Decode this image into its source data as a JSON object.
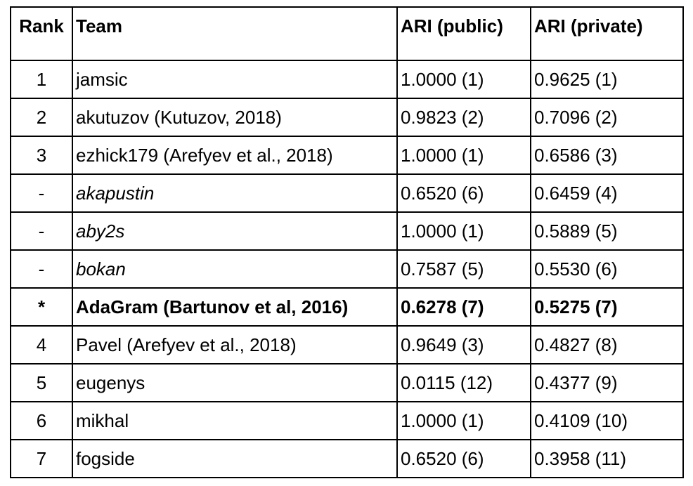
{
  "table": {
    "headers": {
      "rank": "Rank",
      "team": "Team",
      "ari_public": "ARI (public)",
      "ari_private": "ARI (private)"
    },
    "rows": [
      {
        "rank": "1",
        "team": "jamsic",
        "ari_public": "1.0000 (1)",
        "ari_private": "0.9625 (1)",
        "style": "normal"
      },
      {
        "rank": "2",
        "team": "akutuzov (Kutuzov, 2018)",
        "ari_public": "0.9823 (2)",
        "ari_private": "0.7096 (2)",
        "style": "normal"
      },
      {
        "rank": "3",
        "team": "ezhick179 (Arefyev et al., 2018)",
        "ari_public": "1.0000 (1)",
        "ari_private": "0.6586 (3)",
        "style": "normal"
      },
      {
        "rank": "-",
        "team": "akapustin",
        "ari_public": "0.6520 (6)",
        "ari_private": "0.6459 (4)",
        "style": "italic"
      },
      {
        "rank": "-",
        "team": "aby2s",
        "ari_public": "1.0000 (1)",
        "ari_private": "0.5889 (5)",
        "style": "italic"
      },
      {
        "rank": "-",
        "team": "bokan",
        "ari_public": "0.7587 (5)",
        "ari_private": "0.5530 (6)",
        "style": "italic"
      },
      {
        "rank": "*",
        "team": "AdaGram (Bartunov et al, 2016)",
        "ari_public": "0.6278 (7)",
        "ari_private": "0.5275 (7)",
        "style": "bold"
      },
      {
        "rank": "4",
        "team": "Pavel (Arefyev et al., 2018)",
        "ari_public": "0.9649 (3)",
        "ari_private": "0.4827 (8)",
        "style": "normal"
      },
      {
        "rank": "5",
        "team": "eugenys",
        "ari_public": "0.0115 (12)",
        "ari_private": "0.4377 (9)",
        "style": "normal"
      },
      {
        "rank": "6",
        "team": "mikhal",
        "ari_public": "1.0000 (1)",
        "ari_private": "0.4109 (10)",
        "style": "normal"
      },
      {
        "rank": "7",
        "team": "fogside",
        "ari_public": "0.6520 (6)",
        "ari_private": "0.3958 (11)",
        "style": "normal"
      }
    ]
  }
}
